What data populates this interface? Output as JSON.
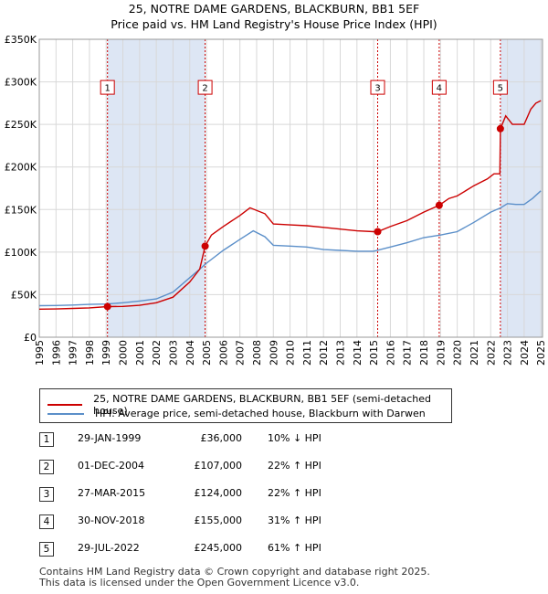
{
  "chart_data": {
    "type": "line",
    "title": "25, NOTRE DAME GARDENS, BLACKBURN, BB1 5EF",
    "subtitle": "Price paid vs. HM Land Registry's House Price Index (HPI)",
    "xlim": [
      1995,
      2025.1
    ],
    "ylim": [
      0,
      350000
    ],
    "x_ticks": [
      1995,
      1996,
      1997,
      1998,
      1999,
      2000,
      2001,
      2002,
      2003,
      2004,
      2005,
      2006,
      2007,
      2008,
      2009,
      2010,
      2011,
      2012,
      2013,
      2014,
      2015,
      2016,
      2017,
      2018,
      2019,
      2020,
      2021,
      2022,
      2023,
      2024,
      2025
    ],
    "y_ticks": [
      {
        "value": 0,
        "label": "£0"
      },
      {
        "value": 50000,
        "label": "£50K"
      },
      {
        "value": 100000,
        "label": "£100K"
      },
      {
        "value": 150000,
        "label": "£150K"
      },
      {
        "value": 200000,
        "label": "£200K"
      },
      {
        "value": 250000,
        "label": "£250K"
      },
      {
        "value": 300000,
        "label": "£300K"
      },
      {
        "value": 350000,
        "label": "£350K"
      }
    ],
    "series": [
      {
        "name": "25, NOTRE DAME GARDENS, BLACKBURN, BB1 5EF (semi-detached house)",
        "color": "#cc0000",
        "points": [
          [
            1995.0,
            33000
          ],
          [
            1996.0,
            33200
          ],
          [
            1997.0,
            33800
          ],
          [
            1998.0,
            34500
          ],
          [
            1999.08,
            36000
          ],
          [
            2000.0,
            36200
          ],
          [
            2001.0,
            37500
          ],
          [
            2002.0,
            40500
          ],
          [
            2003.0,
            47000
          ],
          [
            2004.0,
            65000
          ],
          [
            2004.6,
            80000
          ],
          [
            2004.92,
            107000
          ],
          [
            2005.3,
            120000
          ],
          [
            2006.0,
            130000
          ],
          [
            2007.0,
            143000
          ],
          [
            2007.6,
            152000
          ],
          [
            2008.5,
            145000
          ],
          [
            2009.0,
            133000
          ],
          [
            2010.0,
            132000
          ],
          [
            2011.0,
            131000
          ],
          [
            2012.0,
            129000
          ],
          [
            2013.0,
            127000
          ],
          [
            2014.0,
            125000
          ],
          [
            2015.0,
            124000
          ],
          [
            2015.24,
            124000
          ],
          [
            2016.0,
            130000
          ],
          [
            2017.0,
            137000
          ],
          [
            2018.0,
            147000
          ],
          [
            2018.92,
            155000
          ],
          [
            2019.5,
            163000
          ],
          [
            2020.0,
            166000
          ],
          [
            2021.0,
            178000
          ],
          [
            2021.8,
            186000
          ],
          [
            2022.2,
            192000
          ],
          [
            2022.55,
            192000
          ],
          [
            2022.58,
            245000
          ],
          [
            2022.9,
            260000
          ],
          [
            2023.3,
            250000
          ],
          [
            2024.0,
            250000
          ],
          [
            2024.4,
            268000
          ],
          [
            2024.7,
            275000
          ],
          [
            2025.0,
            278000
          ]
        ]
      },
      {
        "name": "HPI: Average price, semi-detached house, Blackburn with Darwen",
        "color": "#5b8fc9",
        "points": [
          [
            1995.0,
            37000
          ],
          [
            1996.0,
            37300
          ],
          [
            1997.0,
            37800
          ],
          [
            1998.0,
            38500
          ],
          [
            1999.0,
            39000
          ],
          [
            2000.0,
            40500
          ],
          [
            2001.0,
            42500
          ],
          [
            2002.0,
            45000
          ],
          [
            2003.0,
            53000
          ],
          [
            2004.0,
            70000
          ],
          [
            2004.6,
            80000
          ],
          [
            2005.0,
            87000
          ],
          [
            2006.0,
            102000
          ],
          [
            2007.0,
            115000
          ],
          [
            2007.8,
            125000
          ],
          [
            2008.5,
            118000
          ],
          [
            2009.0,
            108000
          ],
          [
            2010.0,
            107000
          ],
          [
            2011.0,
            106000
          ],
          [
            2012.0,
            103000
          ],
          [
            2013.0,
            102000
          ],
          [
            2014.0,
            101000
          ],
          [
            2015.0,
            101000
          ],
          [
            2016.0,
            106000
          ],
          [
            2017.0,
            111000
          ],
          [
            2018.0,
            117000
          ],
          [
            2019.0,
            120000
          ],
          [
            2020.0,
            124000
          ],
          [
            2021.0,
            135000
          ],
          [
            2022.0,
            147000
          ],
          [
            2022.6,
            152000
          ],
          [
            2023.0,
            157000
          ],
          [
            2023.5,
            156000
          ],
          [
            2024.0,
            156000
          ],
          [
            2024.5,
            163000
          ],
          [
            2025.0,
            172000
          ]
        ]
      }
    ],
    "transactions": [
      {
        "n": "1",
        "date": "29-JAN-1999",
        "x": 1999.08,
        "price_value": 36000,
        "price": "£36,000",
        "hpi": "10% ↓ HPI"
      },
      {
        "n": "2",
        "date": "01-DEC-2004",
        "x": 2004.92,
        "price_value": 107000,
        "price": "£107,000",
        "hpi": "22% ↑ HPI"
      },
      {
        "n": "3",
        "date": "27-MAR-2015",
        "x": 2015.24,
        "price_value": 124000,
        "price": "£124,000",
        "hpi": "22% ↑ HPI"
      },
      {
        "n": "4",
        "date": "30-NOV-2018",
        "x": 2018.92,
        "price_value": 155000,
        "price": "£155,000",
        "hpi": "31% ↑ HPI"
      },
      {
        "n": "5",
        "date": "29-JUL-2022",
        "x": 2022.58,
        "price_value": 245000,
        "price": "£245,000",
        "hpi": "61% ↑ HPI"
      }
    ],
    "marker_label_y_value": 293000,
    "shaded_color": "#dde6f4",
    "grid": true
  },
  "legend": {
    "property_label": "25, NOTRE DAME GARDENS, BLACKBURN, BB1 5EF (semi-detached house)",
    "hpi_label": "HPI: Average price, semi-detached house, Blackburn with Darwen"
  },
  "footer": {
    "line1": "Contains HM Land Registry data © Crown copyright and database right 2025.",
    "line2": "This data is licensed under the Open Government Licence v3.0."
  }
}
